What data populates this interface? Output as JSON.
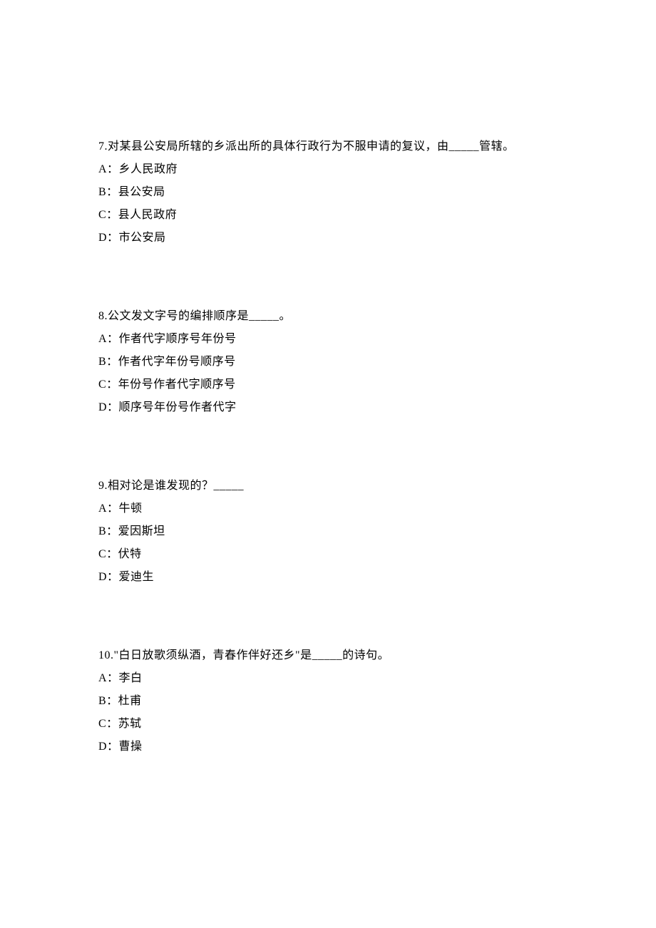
{
  "questions": [
    {
      "number": "7",
      "text": "7.对某县公安局所辖的乡派出所的具体行政行为不服申请的复议，由_____管辖。",
      "options": {
        "a": "A：乡人民政府",
        "b": "B：县公安局",
        "c": "C：县人民政府",
        "d": "D：市公安局"
      }
    },
    {
      "number": "8",
      "text": "8.公文发文字号的编排顺序是_____。",
      "options": {
        "a": "A：作者代字顺序号年份号",
        "b": "B：作者代字年份号顺序号",
        "c": "C：年份号作者代字顺序号",
        "d": "D：顺序号年份号作者代字"
      }
    },
    {
      "number": "9",
      "text": "9.相对论是谁发现的？_____",
      "options": {
        "a": "A：牛顿",
        "b": "B：爱因斯坦",
        "c": "C：伏特",
        "d": "D：爱迪生"
      }
    },
    {
      "number": "10",
      "text": "10.\"白日放歌须纵酒，青春作伴好还乡\"是_____的诗句。",
      "options": {
        "a": "A：李白",
        "b": "B：杜甫",
        "c": "C：苏轼",
        "d": "D：曹操"
      }
    }
  ]
}
